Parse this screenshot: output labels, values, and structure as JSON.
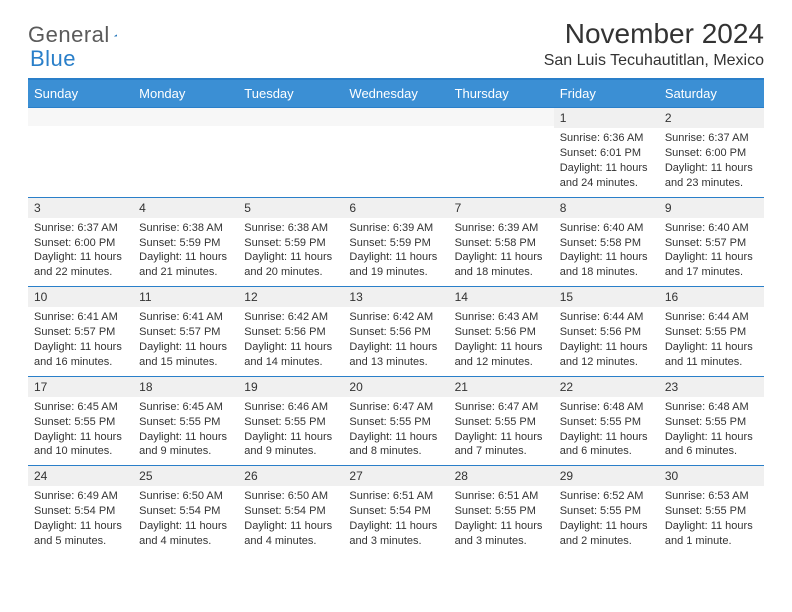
{
  "brand": {
    "name1": "General",
    "name2": "Blue"
  },
  "title": "November 2024",
  "location": "San Luis Tecuhautitlan, Mexico",
  "colors": {
    "accent": "#3b8fd4",
    "accent_border": "#2a7fc9",
    "band": "#f0f0f0",
    "text": "#333333",
    "white": "#ffffff"
  },
  "dows": [
    "Sunday",
    "Monday",
    "Tuesday",
    "Wednesday",
    "Thursday",
    "Friday",
    "Saturday"
  ],
  "weeks": [
    [
      null,
      null,
      null,
      null,
      null,
      {
        "n": "1",
        "sr": "Sunrise: 6:36 AM",
        "ss": "Sunset: 6:01 PM",
        "dl": "Daylight: 11 hours and 24 minutes."
      },
      {
        "n": "2",
        "sr": "Sunrise: 6:37 AM",
        "ss": "Sunset: 6:00 PM",
        "dl": "Daylight: 11 hours and 23 minutes."
      }
    ],
    [
      {
        "n": "3",
        "sr": "Sunrise: 6:37 AM",
        "ss": "Sunset: 6:00 PM",
        "dl": "Daylight: 11 hours and 22 minutes."
      },
      {
        "n": "4",
        "sr": "Sunrise: 6:38 AM",
        "ss": "Sunset: 5:59 PM",
        "dl": "Daylight: 11 hours and 21 minutes."
      },
      {
        "n": "5",
        "sr": "Sunrise: 6:38 AM",
        "ss": "Sunset: 5:59 PM",
        "dl": "Daylight: 11 hours and 20 minutes."
      },
      {
        "n": "6",
        "sr": "Sunrise: 6:39 AM",
        "ss": "Sunset: 5:59 PM",
        "dl": "Daylight: 11 hours and 19 minutes."
      },
      {
        "n": "7",
        "sr": "Sunrise: 6:39 AM",
        "ss": "Sunset: 5:58 PM",
        "dl": "Daylight: 11 hours and 18 minutes."
      },
      {
        "n": "8",
        "sr": "Sunrise: 6:40 AM",
        "ss": "Sunset: 5:58 PM",
        "dl": "Daylight: 11 hours and 18 minutes."
      },
      {
        "n": "9",
        "sr": "Sunrise: 6:40 AM",
        "ss": "Sunset: 5:57 PM",
        "dl": "Daylight: 11 hours and 17 minutes."
      }
    ],
    [
      {
        "n": "10",
        "sr": "Sunrise: 6:41 AM",
        "ss": "Sunset: 5:57 PM",
        "dl": "Daylight: 11 hours and 16 minutes."
      },
      {
        "n": "11",
        "sr": "Sunrise: 6:41 AM",
        "ss": "Sunset: 5:57 PM",
        "dl": "Daylight: 11 hours and 15 minutes."
      },
      {
        "n": "12",
        "sr": "Sunrise: 6:42 AM",
        "ss": "Sunset: 5:56 PM",
        "dl": "Daylight: 11 hours and 14 minutes."
      },
      {
        "n": "13",
        "sr": "Sunrise: 6:42 AM",
        "ss": "Sunset: 5:56 PM",
        "dl": "Daylight: 11 hours and 13 minutes."
      },
      {
        "n": "14",
        "sr": "Sunrise: 6:43 AM",
        "ss": "Sunset: 5:56 PM",
        "dl": "Daylight: 11 hours and 12 minutes."
      },
      {
        "n": "15",
        "sr": "Sunrise: 6:44 AM",
        "ss": "Sunset: 5:56 PM",
        "dl": "Daylight: 11 hours and 12 minutes."
      },
      {
        "n": "16",
        "sr": "Sunrise: 6:44 AM",
        "ss": "Sunset: 5:55 PM",
        "dl": "Daylight: 11 hours and 11 minutes."
      }
    ],
    [
      {
        "n": "17",
        "sr": "Sunrise: 6:45 AM",
        "ss": "Sunset: 5:55 PM",
        "dl": "Daylight: 11 hours and 10 minutes."
      },
      {
        "n": "18",
        "sr": "Sunrise: 6:45 AM",
        "ss": "Sunset: 5:55 PM",
        "dl": "Daylight: 11 hours and 9 minutes."
      },
      {
        "n": "19",
        "sr": "Sunrise: 6:46 AM",
        "ss": "Sunset: 5:55 PM",
        "dl": "Daylight: 11 hours and 9 minutes."
      },
      {
        "n": "20",
        "sr": "Sunrise: 6:47 AM",
        "ss": "Sunset: 5:55 PM",
        "dl": "Daylight: 11 hours and 8 minutes."
      },
      {
        "n": "21",
        "sr": "Sunrise: 6:47 AM",
        "ss": "Sunset: 5:55 PM",
        "dl": "Daylight: 11 hours and 7 minutes."
      },
      {
        "n": "22",
        "sr": "Sunrise: 6:48 AM",
        "ss": "Sunset: 5:55 PM",
        "dl": "Daylight: 11 hours and 6 minutes."
      },
      {
        "n": "23",
        "sr": "Sunrise: 6:48 AM",
        "ss": "Sunset: 5:55 PM",
        "dl": "Daylight: 11 hours and 6 minutes."
      }
    ],
    [
      {
        "n": "24",
        "sr": "Sunrise: 6:49 AM",
        "ss": "Sunset: 5:54 PM",
        "dl": "Daylight: 11 hours and 5 minutes."
      },
      {
        "n": "25",
        "sr": "Sunrise: 6:50 AM",
        "ss": "Sunset: 5:54 PM",
        "dl": "Daylight: 11 hours and 4 minutes."
      },
      {
        "n": "26",
        "sr": "Sunrise: 6:50 AM",
        "ss": "Sunset: 5:54 PM",
        "dl": "Daylight: 11 hours and 4 minutes."
      },
      {
        "n": "27",
        "sr": "Sunrise: 6:51 AM",
        "ss": "Sunset: 5:54 PM",
        "dl": "Daylight: 11 hours and 3 minutes."
      },
      {
        "n": "28",
        "sr": "Sunrise: 6:51 AM",
        "ss": "Sunset: 5:55 PM",
        "dl": "Daylight: 11 hours and 3 minutes."
      },
      {
        "n": "29",
        "sr": "Sunrise: 6:52 AM",
        "ss": "Sunset: 5:55 PM",
        "dl": "Daylight: 11 hours and 2 minutes."
      },
      {
        "n": "30",
        "sr": "Sunrise: 6:53 AM",
        "ss": "Sunset: 5:55 PM",
        "dl": "Daylight: 11 hours and 1 minute."
      }
    ]
  ]
}
